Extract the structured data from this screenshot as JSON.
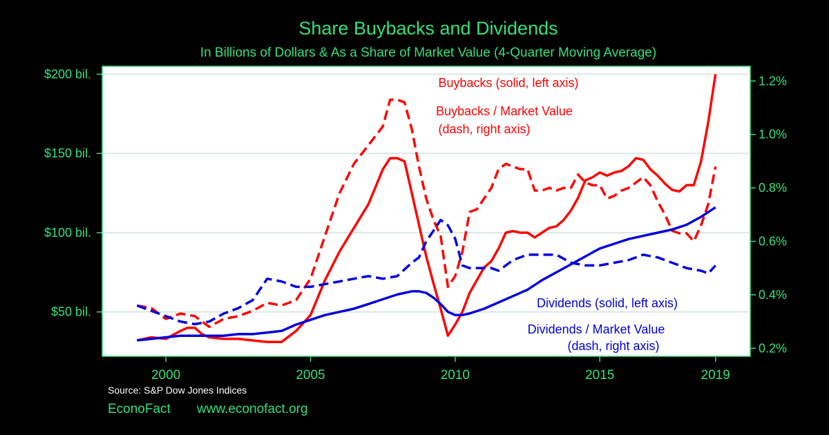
{
  "chart_data": {
    "type": "line",
    "title": "Share Buybacks and Dividends",
    "subtitle": "In Billions of Dollars & As a Share of Market Value (4-Quarter Moving Average)",
    "xlim": [
      1997.8,
      2020.2
    ],
    "xticks": [
      2000,
      2005,
      2010,
      2015,
      2019
    ],
    "x_tick_labels": [
      "2000",
      "2005",
      "2010",
      "2015",
      "2019"
    ],
    "ylim_left": [
      22,
      205
    ],
    "yticks_left": [
      50,
      100,
      150,
      200
    ],
    "y_tick_labels_left": [
      "$50 bil.",
      "$100 bil.",
      "$150 bil.",
      "$200 bil."
    ],
    "ylim_right": [
      0.17,
      1.255
    ],
    "yticks_right": [
      0.2,
      0.4,
      0.6,
      0.8,
      1.0,
      1.2
    ],
    "y_tick_labels_right": [
      "0.2%",
      "0.4%",
      "0.6%",
      "0.8%",
      "1.0%",
      "1.2%"
    ],
    "grid": true,
    "background": "#ffffff",
    "series": [
      {
        "name": "Buybacks (solid, left axis)",
        "axis": "left",
        "style": "solid",
        "color": "#ff0000",
        "x": [
          1999.0,
          1999.5,
          2000.0,
          2000.5,
          2000.75,
          2001.0,
          2001.25,
          2001.5,
          2002.0,
          2002.5,
          2003.0,
          2003.5,
          2004.0,
          2004.5,
          2005.0,
          2005.5,
          2006.0,
          2006.5,
          2007.0,
          2007.5,
          2007.75,
          2008.0,
          2008.25,
          2008.5,
          2008.75,
          2009.0,
          2009.25,
          2009.5,
          2009.75,
          2010.0,
          2010.25,
          2010.5,
          2010.75,
          2011.0,
          2011.25,
          2011.5,
          2011.75,
          2012.0,
          2012.25,
          2012.5,
          2012.75,
          2013.0,
          2013.25,
          2013.5,
          2013.75,
          2014.0,
          2014.25,
          2014.5,
          2014.75,
          2015.0,
          2015.25,
          2015.5,
          2015.75,
          2016.0,
          2016.25,
          2016.5,
          2016.75,
          2017.0,
          2017.25,
          2017.5,
          2017.75,
          2018.0,
          2018.25,
          2018.5,
          2018.75,
          2019.0
        ],
        "values": [
          32,
          34,
          33,
          38,
          40,
          40,
          36,
          34,
          33,
          33,
          32,
          31,
          31,
          38,
          48,
          70,
          88,
          103,
          118,
          140,
          147,
          147,
          145,
          125,
          105,
          85,
          68,
          52,
          35,
          42,
          50,
          62,
          70,
          78,
          82,
          90,
          100,
          101,
          100,
          100,
          97,
          100,
          103,
          104,
          108,
          114,
          122,
          133,
          135,
          138,
          136,
          138,
          139,
          142,
          147,
          146,
          140,
          136,
          131,
          127,
          126,
          130,
          130,
          145,
          170,
          200
        ]
      },
      {
        "name": "Buybacks / Market Value (dash, right axis)",
        "axis": "right",
        "style": "dash",
        "color": "#ff0000",
        "x": [
          1999.0,
          1999.5,
          2000.0,
          2000.5,
          2001.0,
          2001.5,
          2002.0,
          2002.5,
          2003.0,
          2003.5,
          2004.0,
          2004.5,
          2005.0,
          2005.5,
          2006.0,
          2006.5,
          2007.0,
          2007.5,
          2007.75,
          2008.0,
          2008.25,
          2008.5,
          2008.75,
          2009.0,
          2009.25,
          2009.5,
          2009.75,
          2010.0,
          2010.25,
          2010.5,
          2010.75,
          2011.0,
          2011.25,
          2011.5,
          2011.75,
          2012.0,
          2012.25,
          2012.5,
          2012.75,
          2013.0,
          2013.25,
          2013.5,
          2013.75,
          2014.0,
          2014.25,
          2014.5,
          2014.75,
          2015.0,
          2015.25,
          2015.5,
          2015.75,
          2016.0,
          2016.25,
          2016.5,
          2016.75,
          2017.0,
          2017.25,
          2017.5,
          2017.75,
          2018.0,
          2018.25,
          2018.5,
          2018.75,
          2019.0
        ],
        "values": [
          0.36,
          0.35,
          0.31,
          0.33,
          0.32,
          0.28,
          0.31,
          0.32,
          0.34,
          0.37,
          0.36,
          0.38,
          0.46,
          0.62,
          0.78,
          0.89,
          0.96,
          1.03,
          1.13,
          1.13,
          1.12,
          1.02,
          0.88,
          0.76,
          0.68,
          0.62,
          0.43,
          0.47,
          0.56,
          0.71,
          0.72,
          0.76,
          0.8,
          0.87,
          0.89,
          0.88,
          0.87,
          0.87,
          0.79,
          0.79,
          0.8,
          0.79,
          0.8,
          0.8,
          0.85,
          0.82,
          0.81,
          0.81,
          0.76,
          0.77,
          0.79,
          0.8,
          0.82,
          0.84,
          0.81,
          0.75,
          0.7,
          0.64,
          0.63,
          0.63,
          0.6,
          0.66,
          0.74,
          0.88
        ]
      },
      {
        "name": "Dividends (solid, left axis)",
        "axis": "left",
        "style": "solid",
        "color": "#0000dd",
        "x": [
          1999.0,
          1999.5,
          2000.0,
          2000.5,
          2001.0,
          2001.5,
          2002.0,
          2002.5,
          2003.0,
          2003.5,
          2004.0,
          2004.5,
          2005.0,
          2005.5,
          2006.0,
          2006.5,
          2007.0,
          2007.5,
          2008.0,
          2008.5,
          2008.75,
          2009.0,
          2009.25,
          2009.5,
          2009.75,
          2010.0,
          2010.25,
          2010.5,
          2011.0,
          2011.5,
          2012.0,
          2012.5,
          2013.0,
          2013.5,
          2014.0,
          2014.5,
          2015.0,
          2015.5,
          2016.0,
          2016.5,
          2017.0,
          2017.5,
          2018.0,
          2018.5,
          2019.0
        ],
        "values": [
          32,
          33,
          34,
          35,
          35,
          35,
          35,
          36,
          36,
          37,
          38,
          42,
          45,
          48,
          50,
          52,
          55,
          58,
          61,
          63,
          63,
          62,
          59,
          55,
          50,
          48,
          48,
          49,
          52,
          56,
          60,
          64,
          70,
          75,
          80,
          85,
          90,
          93,
          96,
          98,
          100,
          102,
          105,
          110,
          116
        ]
      },
      {
        "name": "Dividends / Market Value (dash, right axis)",
        "axis": "right",
        "style": "dash",
        "color": "#0000dd",
        "x": [
          1999.0,
          1999.5,
          2000.0,
          2000.5,
          2001.0,
          2001.5,
          2002.0,
          2002.5,
          2003.0,
          2003.5,
          2004.0,
          2004.5,
          2005.0,
          2005.5,
          2006.0,
          2006.5,
          2007.0,
          2007.5,
          2008.0,
          2008.5,
          2008.75,
          2009.0,
          2009.25,
          2009.5,
          2009.75,
          2010.0,
          2010.25,
          2010.5,
          2010.75,
          2011.0,
          2011.25,
          2011.5,
          2011.75,
          2012.0,
          2012.5,
          2013.0,
          2013.5,
          2014.0,
          2014.5,
          2015.0,
          2015.5,
          2016.0,
          2016.5,
          2017.0,
          2017.5,
          2018.0,
          2018.5,
          2018.75,
          2019.0
        ],
        "values": [
          0.36,
          0.34,
          0.32,
          0.3,
          0.29,
          0.3,
          0.33,
          0.35,
          0.38,
          0.46,
          0.45,
          0.43,
          0.43,
          0.44,
          0.45,
          0.46,
          0.47,
          0.46,
          0.47,
          0.52,
          0.54,
          0.6,
          0.64,
          0.68,
          0.66,
          0.61,
          0.51,
          0.5,
          0.5,
          0.5,
          0.5,
          0.49,
          0.51,
          0.53,
          0.55,
          0.55,
          0.55,
          0.52,
          0.51,
          0.51,
          0.52,
          0.53,
          0.55,
          0.54,
          0.52,
          0.5,
          0.49,
          0.48,
          0.51
        ]
      }
    ]
  },
  "annotations": {
    "buybacks": "Buybacks (solid, left axis)",
    "buyback_ratio_1": "Buybacks / Market Value",
    "buyback_ratio_2": "(dash, right axis)",
    "dividends": "Dividends (solid, left axis)",
    "dividend_ratio_1": "Dividends / Market Value",
    "dividend_ratio_2": "(dash, right axis)"
  },
  "footer": {
    "source": "Source: S&P Dow Jones Indices",
    "brand": "EconoFact",
    "url": "www.econofact.org"
  },
  "colors": {
    "text_green": "#33e07a",
    "axis_green": "#33e07a",
    "red": "#ff0000",
    "blue": "#0000dd",
    "background": "#000000",
    "plot_bg": "#ffffff",
    "grid": "#d8e8e4"
  }
}
